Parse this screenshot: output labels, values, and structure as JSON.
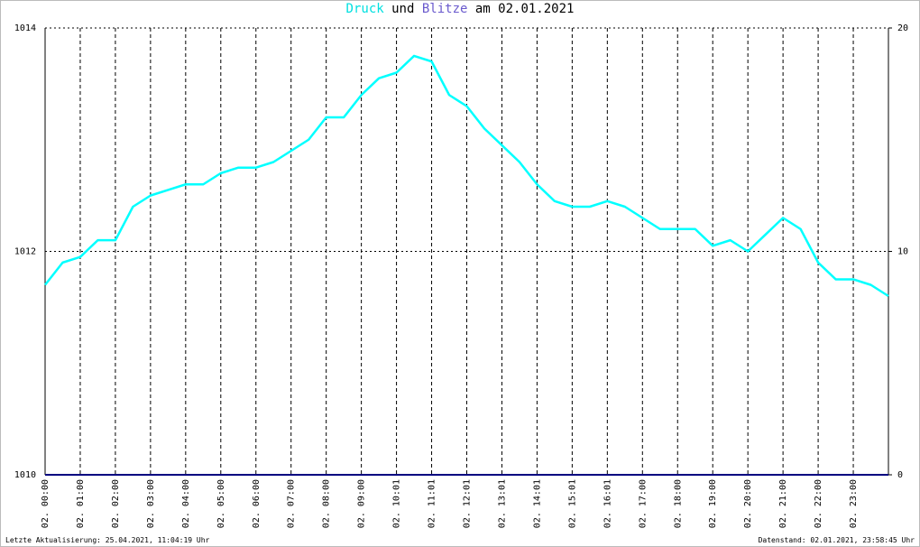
{
  "chart_data": {
    "type": "line",
    "title_parts": [
      "und",
      "am 02.01.2021"
    ],
    "x": [
      0,
      0.5,
      1,
      1.5,
      2,
      2.5,
      3,
      3.5,
      4,
      4.5,
      5,
      5.5,
      6,
      6.5,
      7,
      7.5,
      8,
      8.5,
      9,
      9.5,
      10,
      10.5,
      11,
      11.5,
      12,
      12.5,
      13,
      13.5,
      14,
      14.5,
      15,
      15.5,
      16,
      16.5,
      17,
      17.5,
      18,
      18.5,
      19,
      19.5,
      20,
      20.5,
      21,
      21.5,
      22,
      22.5,
      23,
      23.5,
      24
    ],
    "series": [
      {
        "name": "Druck",
        "color": "#00ffff",
        "values": [
          1011.7,
          1011.9,
          1011.95,
          1012.1,
          1012.1,
          1012.4,
          1012.5,
          1012.55,
          1012.6,
          1012.6,
          1012.7,
          1012.75,
          1012.75,
          1012.8,
          1012.9,
          1013.0,
          1013.2,
          1013.2,
          1013.4,
          1013.55,
          1013.6,
          1013.75,
          1013.7,
          1013.4,
          1013.3,
          1013.1,
          1012.95,
          1012.8,
          1012.6,
          1012.45,
          1012.4,
          1012.4,
          1012.45,
          1012.4,
          1012.3,
          1012.2,
          1012.2,
          1012.2,
          1012.05,
          1012.1,
          1012.0,
          1012.15,
          1012.3,
          1012.2,
          1011.9,
          1011.75,
          1011.75,
          1011.7,
          1011.6
        ]
      },
      {
        "name": "Blitze",
        "color": "#000080",
        "axis": "y2",
        "values": [
          0,
          0,
          0,
          0,
          0,
          0,
          0,
          0,
          0,
          0,
          0,
          0,
          0,
          0,
          0,
          0,
          0,
          0,
          0,
          0,
          0,
          0,
          0,
          0,
          0,
          0,
          0,
          0,
          0,
          0,
          0,
          0,
          0,
          0,
          0,
          0,
          0,
          0,
          0,
          0,
          0,
          0,
          0,
          0,
          0,
          0,
          0,
          0,
          0
        ]
      }
    ],
    "xlim": [
      0,
      24
    ],
    "xticks": [
      {
        "value": 0,
        "label": "02. 00:00"
      },
      {
        "value": 1,
        "label": "02. 01:00"
      },
      {
        "value": 2,
        "label": "02. 02:00"
      },
      {
        "value": 3,
        "label": "02. 03:00"
      },
      {
        "value": 4,
        "label": "02. 04:00"
      },
      {
        "value": 5,
        "label": "02. 05:00"
      },
      {
        "value": 6,
        "label": "02. 06:00"
      },
      {
        "value": 7,
        "label": "02. 07:00"
      },
      {
        "value": 8,
        "label": "02. 08:00"
      },
      {
        "value": 9,
        "label": "02. 09:00"
      },
      {
        "value": 10,
        "label": "02. 10:01"
      },
      {
        "value": 11,
        "label": "02. 11:01"
      },
      {
        "value": 12,
        "label": "02. 12:01"
      },
      {
        "value": 13,
        "label": "02. 13:01"
      },
      {
        "value": 14,
        "label": "02. 14:01"
      },
      {
        "value": 15,
        "label": "02. 15:01"
      },
      {
        "value": 16,
        "label": "02. 16:01"
      },
      {
        "value": 17,
        "label": "02. 17:00"
      },
      {
        "value": 18,
        "label": "02. 18:00"
      },
      {
        "value": 19,
        "label": "02. 19:00"
      },
      {
        "value": 20,
        "label": "02. 20:00"
      },
      {
        "value": 21,
        "label": "02. 21:00"
      },
      {
        "value": 22,
        "label": "02. 22:00"
      },
      {
        "value": 23,
        "label": "02. 23:00"
      }
    ],
    "ylim": [
      1010,
      1014
    ],
    "yticks": [
      1010,
      1012,
      1014
    ],
    "y2lim": [
      0,
      20
    ],
    "y2ticks": [
      0,
      10,
      20
    ],
    "grid": true,
    "footer_left": "Letzte Aktualisierung: 25.04.2021, 11:04:19 Uhr",
    "footer_right": "Datenstand: 02.01.2021, 23:58:45 Uhr"
  }
}
